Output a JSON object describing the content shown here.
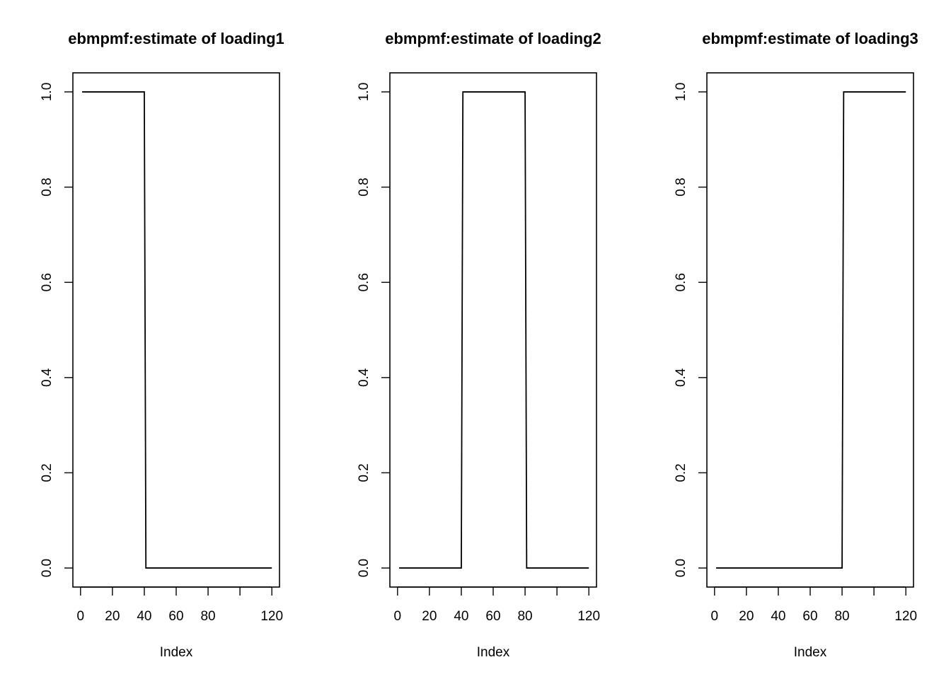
{
  "chart_data": [
    {
      "type": "line",
      "title": "ebmpmf:estimate of loading1",
      "xlabel": "Index",
      "ylabel": "",
      "xlim": [
        0,
        120
      ],
      "ylim": [
        0,
        1
      ],
      "xticks": [
        0,
        20,
        40,
        60,
        80,
        100,
        120
      ],
      "xtick_labels": [
        "0",
        "20",
        "40",
        "60",
        "80",
        "",
        "120"
      ],
      "yticks": [
        0,
        0.2,
        0.4,
        0.6,
        0.8,
        1.0
      ],
      "ytick_labels": [
        "0.0",
        "0.2",
        "0.4",
        "0.6",
        "0.8",
        "1.0"
      ],
      "grid": false,
      "series": [
        {
          "x": [
            1,
            40,
            41,
            120
          ],
          "values": [
            1,
            1,
            0,
            0
          ]
        }
      ]
    },
    {
      "type": "line",
      "title": "ebmpmf:estimate of loading2",
      "xlabel": "Index",
      "ylabel": "",
      "xlim": [
        0,
        120
      ],
      "ylim": [
        0,
        1
      ],
      "xticks": [
        0,
        20,
        40,
        60,
        80,
        100,
        120
      ],
      "xtick_labels": [
        "0",
        "20",
        "40",
        "60",
        "80",
        "",
        "120"
      ],
      "yticks": [
        0,
        0.2,
        0.4,
        0.6,
        0.8,
        1.0
      ],
      "ytick_labels": [
        "0.0",
        "0.2",
        "0.4",
        "0.6",
        "0.8",
        "1.0"
      ],
      "grid": false,
      "series": [
        {
          "x": [
            1,
            40,
            41,
            80,
            81,
            120
          ],
          "values": [
            0,
            0,
            1,
            1,
            0,
            0
          ]
        }
      ]
    },
    {
      "type": "line",
      "title": "ebmpmf:estimate of loading3",
      "xlabel": "Index",
      "ylabel": "",
      "xlim": [
        0,
        120
      ],
      "ylim": [
        0,
        1
      ],
      "xticks": [
        0,
        20,
        40,
        60,
        80,
        100,
        120
      ],
      "xtick_labels": [
        "0",
        "20",
        "40",
        "60",
        "80",
        "",
        "120"
      ],
      "yticks": [
        0,
        0.2,
        0.4,
        0.6,
        0.8,
        1.0
      ],
      "ytick_labels": [
        "0.0",
        "0.2",
        "0.4",
        "0.6",
        "0.8",
        "1.0"
      ],
      "grid": false,
      "series": [
        {
          "x": [
            1,
            80,
            81,
            120
          ],
          "values": [
            0,
            0,
            1,
            1
          ]
        }
      ]
    }
  ]
}
